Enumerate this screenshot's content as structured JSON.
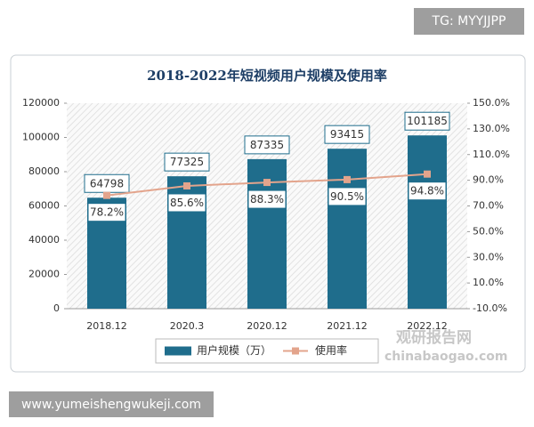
{
  "chart_data": {
    "type": "bar_line",
    "title": "2018-2022年短视频用户规模及使用率",
    "categories": [
      "2018.12",
      "2020.3",
      "2020.12",
      "2021.12",
      "2022.12"
    ],
    "series": [
      {
        "name": "用户规模（万）",
        "color": "#1f6d8c",
        "values": [
          64798,
          77325,
          87335,
          93415,
          101185
        ]
      },
      {
        "name": "使用率",
        "color": "#e3a48c",
        "axis": "y2",
        "values": [
          78.2,
          85.6,
          88.3,
          90.5,
          94.8
        ],
        "value_labels": [
          "78.2%",
          "85.6%",
          "88.3%",
          "90.5%",
          "94.8%"
        ]
      }
    ],
    "ylim": [
      0,
      120000
    ],
    "yticks": [
      0,
      20000,
      40000,
      60000,
      80000,
      100000,
      120000
    ],
    "y2lim": [
      -10,
      150
    ],
    "y2ticks": [
      {
        "value": -10,
        "label": "-10.0%"
      },
      {
        "value": 10,
        "label": "10.0%"
      },
      {
        "value": 30,
        "label": "30.0%"
      },
      {
        "value": 50,
        "label": "50.0%"
      },
      {
        "value": 70,
        "label": "70.0%"
      },
      {
        "value": 90,
        "label": "90.0%"
      },
      {
        "value": 110,
        "label": "110.0%"
      },
      {
        "value": 130,
        "label": "130.0%"
      },
      {
        "value": 150,
        "label": "150.0%"
      }
    ],
    "grid": false,
    "legend": "bottom"
  },
  "overlays": {
    "tag": "TG: MYYJJPP",
    "website": "www.yumeishengwukeji.com",
    "watermark": "观研报告网",
    "watermark_url": "chinabaogao.com"
  }
}
